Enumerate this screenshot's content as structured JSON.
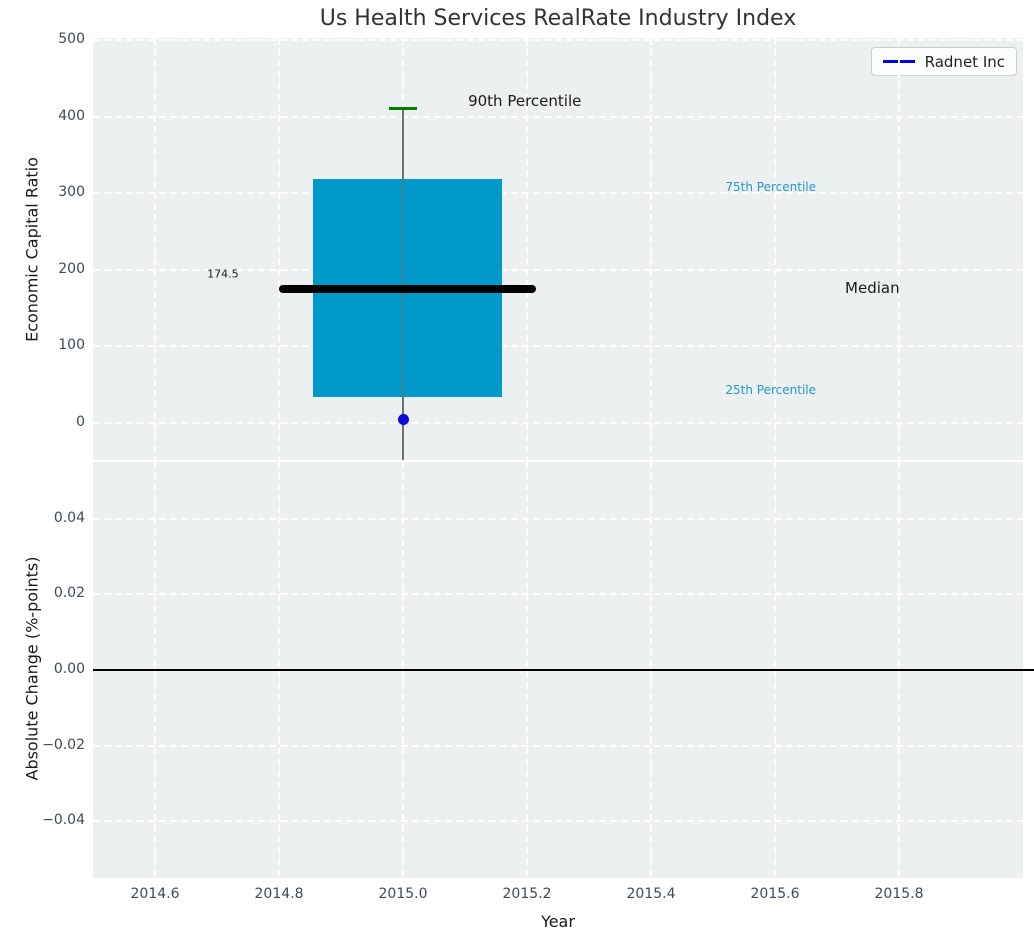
{
  "title": "Us Health Services RealRate Industry Index",
  "legend": {
    "label": "Radnet Inc",
    "line_color": "#0000EE"
  },
  "styles": {
    "figure_bg": "#FFFFFF",
    "axes_bg": "#ECF0F1",
    "grid_color": "#FFFFFF",
    "tick_label_color": "#3E4A59",
    "box_color": "#0099CB",
    "whisker_color": "#6F6F6F",
    "cap_color": "#008000",
    "median_color": "#000000",
    "point_color": "#0A0ADB",
    "percentile_label_color": "#2398C6",
    "zero_line_color": "#000000"
  },
  "chart_data": [
    {
      "type": "boxplot",
      "subplot": "top",
      "title": "Us Health Services RealRate Industry Index",
      "ylabel": "Economic Capital Ratio",
      "ylim": [
        -48.3,
        502.6
      ],
      "yticks": [
        "0",
        "100",
        "200",
        "300",
        "400",
        "500"
      ],
      "ytick_values": [
        0,
        100,
        200,
        300,
        400,
        500
      ],
      "xlim": [
        2014.5,
        2016.0
      ],
      "grid": "white dashed on",
      "legend_position": "upper right",
      "box": {
        "x_center": 2015.0,
        "x_left": 2014.855,
        "x_right": 2015.16,
        "p25": 34,
        "median": 174.5,
        "p75": 318,
        "p90": 410,
        "whisker_low": "clipped below axis bottom",
        "median_label": "174.5",
        "median_line_x_left": 2014.8,
        "median_line_x_right": 2015.215,
        "cap_x_left": 2014.978,
        "cap_x_right": 2015.022
      },
      "points": [
        {
          "name": "Radnet Inc",
          "x": 2015.0,
          "y": 5
        }
      ],
      "annotations": [
        {
          "text": "90th Percentile",
          "x": 2015.105,
          "y": 421,
          "size": 15,
          "color": "#1A1A1A"
        },
        {
          "text": "75th Percentile",
          "x": 2015.52,
          "y": 308,
          "size": 12,
          "color": "#2398C6"
        },
        {
          "text": "Median",
          "x": 2015.713,
          "y": 176,
          "size": 15,
          "color": "#1A1A1A"
        },
        {
          "text": "25th Percentile",
          "x": 2015.52,
          "y": 43,
          "size": 12,
          "color": "#2398C6"
        },
        {
          "text": "174.5",
          "x": 2014.684,
          "y": 195,
          "size": 11,
          "color": "#1A1A1A"
        }
      ]
    },
    {
      "type": "line",
      "subplot": "bottom",
      "ylabel": "Absolute Change (%-points)",
      "xlabel": "Year",
      "ylim": [
        -0.055,
        0.055
      ],
      "yticks": [
        "0.04",
        "0.02",
        "0.00",
        "−0.02",
        "−0.04"
      ],
      "ytick_values": [
        0.04,
        0.02,
        0.0,
        -0.02,
        -0.04
      ],
      "xticks": [
        "2014.6",
        "2014.8",
        "2015.0",
        "2015.2",
        "2015.4",
        "2015.6",
        "2015.8"
      ],
      "xtick_values": [
        2014.6,
        2014.8,
        2015.0,
        2015.2,
        2015.4,
        2015.6,
        2015.8
      ],
      "series": [
        {
          "name": "Radnet Inc",
          "values": "zero line only visible",
          "zero_line_y": 0.0
        }
      ]
    }
  ]
}
